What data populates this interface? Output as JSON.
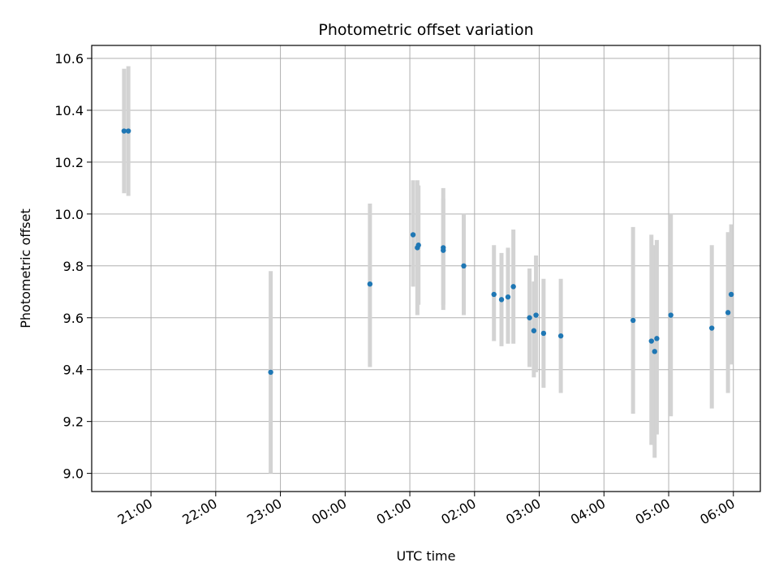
{
  "chart_data": {
    "type": "scatter",
    "title": "Photometric offset variation",
    "xlabel": "UTC time",
    "ylabel": "Photometric offset",
    "xlim": [
      "20:05",
      "06:25"
    ],
    "ylim": [
      8.93,
      10.65
    ],
    "grid": true,
    "legend": "none",
    "x_ticks": [
      "21:00",
      "22:00",
      "23:00",
      "00:00",
      "01:00",
      "02:00",
      "03:00",
      "04:00",
      "05:00",
      "06:00"
    ],
    "y_ticks": [
      "9.0",
      "9.2",
      "9.4",
      "9.6",
      "9.8",
      "10.0",
      "10.2",
      "10.4",
      "10.6"
    ],
    "colors": {
      "point": "#1f77b4",
      "errorbar": "#d3d3d3",
      "grid": "#b0b0b0"
    },
    "series": [
      {
        "points": [
          {
            "x": "20:35",
            "y": 10.32,
            "ylow": 10.08,
            "yhigh": 10.56
          },
          {
            "x": "20:39",
            "y": 10.32,
            "ylow": 10.07,
            "yhigh": 10.57
          },
          {
            "x": "22:51",
            "y": 9.39,
            "ylow": 9.0,
            "yhigh": 9.78
          },
          {
            "x": "00:23",
            "y": 9.73,
            "ylow": 9.41,
            "yhigh": 10.04
          },
          {
            "x": "01:03",
            "y": 9.92,
            "ylow": 9.72,
            "yhigh": 10.13
          },
          {
            "x": "01:07",
            "y": 9.87,
            "ylow": 9.61,
            "yhigh": 10.13
          },
          {
            "x": "01:08",
            "y": 9.88,
            "ylow": 9.65,
            "yhigh": 10.11
          },
          {
            "x": "01:31",
            "y": 9.87,
            "ylow": 9.63,
            "yhigh": 10.1
          },
          {
            "x": "01:31",
            "y": 9.86,
            "ylow": 9.65,
            "yhigh": 10.06
          },
          {
            "x": "01:50",
            "y": 9.8,
            "ylow": 9.61,
            "yhigh": 10.0
          },
          {
            "x": "02:18",
            "y": 9.69,
            "ylow": 9.51,
            "yhigh": 9.88
          },
          {
            "x": "02:25",
            "y": 9.67,
            "ylow": 9.49,
            "yhigh": 9.85
          },
          {
            "x": "02:31",
            "y": 9.68,
            "ylow": 9.5,
            "yhigh": 9.87
          },
          {
            "x": "02:36",
            "y": 9.72,
            "ylow": 9.5,
            "yhigh": 9.94
          },
          {
            "x": "02:51",
            "y": 9.6,
            "ylow": 9.41,
            "yhigh": 9.79
          },
          {
            "x": "02:55",
            "y": 9.55,
            "ylow": 9.37,
            "yhigh": 9.74
          },
          {
            "x": "02:57",
            "y": 9.61,
            "ylow": 9.39,
            "yhigh": 9.84
          },
          {
            "x": "03:04",
            "y": 9.54,
            "ylow": 9.33,
            "yhigh": 9.75
          },
          {
            "x": "03:20",
            "y": 9.53,
            "ylow": 9.31,
            "yhigh": 9.75
          },
          {
            "x": "04:27",
            "y": 9.59,
            "ylow": 9.23,
            "yhigh": 9.95
          },
          {
            "x": "04:44",
            "y": 9.51,
            "ylow": 9.11,
            "yhigh": 9.92
          },
          {
            "x": "04:47",
            "y": 9.47,
            "ylow": 9.06,
            "yhigh": 9.88
          },
          {
            "x": "04:49",
            "y": 9.52,
            "ylow": 9.15,
            "yhigh": 9.9
          },
          {
            "x": "05:02",
            "y": 9.61,
            "ylow": 9.22,
            "yhigh": 10.0
          },
          {
            "x": "05:40",
            "y": 9.56,
            "ylow": 9.25,
            "yhigh": 9.88
          },
          {
            "x": "05:55",
            "y": 9.62,
            "ylow": 9.31,
            "yhigh": 9.93
          },
          {
            "x": "05:58",
            "y": 9.69,
            "ylow": 9.42,
            "yhigh": 9.96
          }
        ]
      }
    ]
  }
}
